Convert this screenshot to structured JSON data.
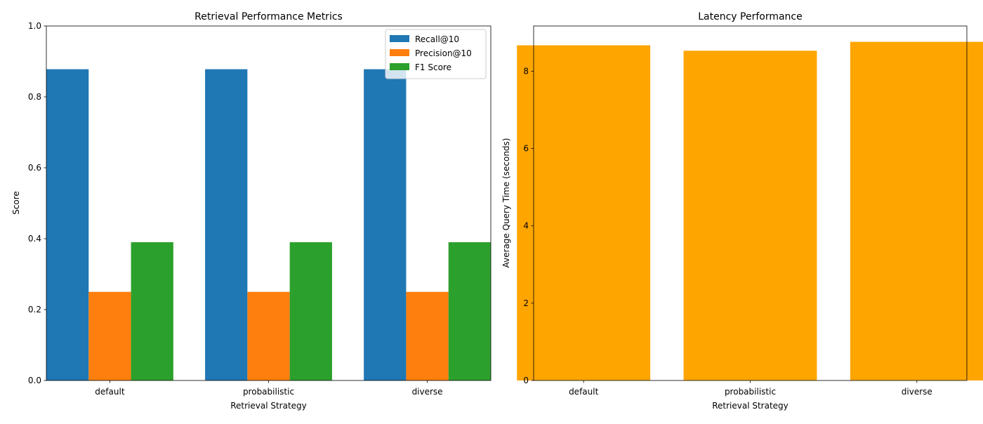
{
  "chart_data": [
    {
      "type": "bar",
      "title": "Retrieval Performance Metrics",
      "xlabel": "Retrieval Strategy",
      "ylabel": "Score",
      "categories": [
        "default",
        "probabilistic",
        "diverse"
      ],
      "ylim": [
        0,
        1.0
      ],
      "yticks": [
        "0.0",
        "0.2",
        "0.4",
        "0.6",
        "0.8",
        "1.0"
      ],
      "ytick_values": [
        0,
        0.2,
        0.4,
        0.6,
        0.8,
        1.0
      ],
      "legend_position": "top-right",
      "series": [
        {
          "name": "Recall@10",
          "color": "#1f77b4",
          "values": [
            0.878,
            0.878,
            0.878
          ]
        },
        {
          "name": "Precision@10",
          "color": "#ff7f0e",
          "values": [
            0.25,
            0.25,
            0.25
          ]
        },
        {
          "name": "F1 Score",
          "color": "#2ca02c",
          "values": [
            0.39,
            0.39,
            0.39
          ]
        }
      ]
    },
    {
      "type": "bar",
      "title": "Latency Performance",
      "xlabel": "Retrieval Strategy",
      "ylabel": "Average Query Time (seconds)",
      "categories": [
        "default",
        "probabilistic",
        "diverse"
      ],
      "ylim": [
        0,
        9.17
      ],
      "yticks": [
        "0",
        "2",
        "4",
        "6",
        "8"
      ],
      "ytick_values": [
        0,
        2,
        4,
        6,
        8
      ],
      "series": [
        {
          "color": "#ffa500",
          "values": [
            8.67,
            8.53,
            8.76
          ]
        }
      ]
    }
  ]
}
